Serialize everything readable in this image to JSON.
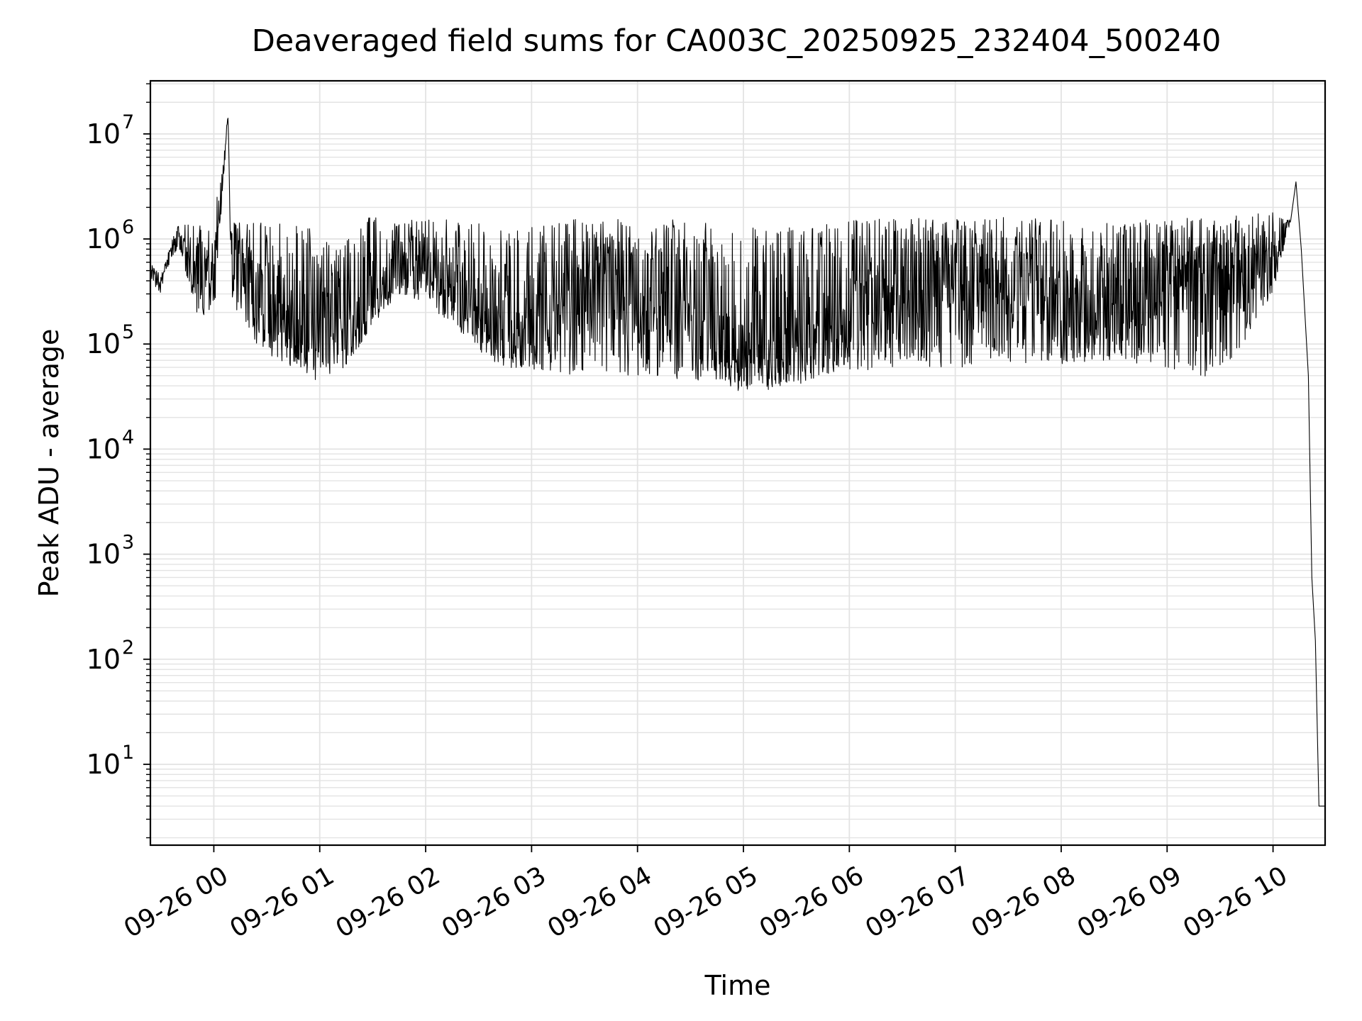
{
  "chart_data": {
    "type": "line",
    "title": "Deaveraged field sums for CA003C_20250925_232404_500240",
    "xlabel": "Time",
    "ylabel": "Peak ADU - average",
    "yscale": "log",
    "grid": true,
    "line_color": "#000000",
    "xlim": [
      "2025-09-25T23:24:04",
      "2025-09-26T10:29:30"
    ],
    "ylim": [
      1.7,
      32000000
    ],
    "x_tick_labels": [
      "09-26 00",
      "09-26 01",
      "09-26 02",
      "09-26 03",
      "09-26 04",
      "09-26 05",
      "09-26 06",
      "09-26 07",
      "09-26 08",
      "09-26 09",
      "09-26 10"
    ],
    "x_tick_times": [
      "2025-09-26T00:00:00",
      "2025-09-26T01:00:00",
      "2025-09-26T02:00:00",
      "2025-09-26T03:00:00",
      "2025-09-26T04:00:00",
      "2025-09-26T05:00:00",
      "2025-09-26T06:00:00",
      "2025-09-26T07:00:00",
      "2025-09-26T08:00:00",
      "2025-09-26T09:00:00",
      "2025-09-26T10:00:00"
    ],
    "y_tick_values": [
      10,
      100,
      1000,
      10000,
      100000,
      1000000,
      10000000
    ],
    "y_tick_labels": [
      {
        "base": "10",
        "exp": "1"
      },
      {
        "base": "10",
        "exp": "2"
      },
      {
        "base": "10",
        "exp": "3"
      },
      {
        "base": "10",
        "exp": "4"
      },
      {
        "base": "10",
        "exp": "5"
      },
      {
        "base": "10",
        "exp": "6"
      },
      {
        "base": "10",
        "exp": "7"
      }
    ],
    "series": [
      {
        "x": [
          "2025-09-25T23:24:04",
          "2025-09-25T23:30:00",
          "2025-09-25T23:40:00",
          "2025-09-25T23:45:00",
          "2025-09-25T23:50:00",
          "2025-09-26T00:00:00",
          "2025-09-26T00:08:00",
          "2025-09-26T00:10:00",
          "2025-09-26T00:20:00",
          "2025-09-26T00:30:00",
          "2025-09-26T00:45:00",
          "2025-09-26T01:00:00",
          "2025-09-26T01:15:00",
          "2025-09-26T01:30:00",
          "2025-09-26T01:45:00",
          "2025-09-26T02:00:00",
          "2025-09-26T02:15:00",
          "2025-09-26T02:30:00",
          "2025-09-26T02:45:00",
          "2025-09-26T03:00:00",
          "2025-09-26T03:30:00",
          "2025-09-26T04:00:00",
          "2025-09-26T04:30:00",
          "2025-09-26T05:00:00",
          "2025-09-26T05:30:00",
          "2025-09-26T06:00:00",
          "2025-09-26T06:30:00",
          "2025-09-26T07:00:00",
          "2025-09-26T07:30:00",
          "2025-09-26T08:00:00",
          "2025-09-26T08:30:00",
          "2025-09-26T09:00:00",
          "2025-09-26T09:30:00",
          "2025-09-26T10:00:00",
          "2025-09-26T10:10:00",
          "2025-09-26T10:13:00",
          "2025-09-26T10:16:00",
          "2025-09-26T10:20:00",
          "2025-09-26T10:22:00",
          "2025-09-26T10:24:00",
          "2025-09-26T10:26:00",
          "2025-09-26T10:29:30"
        ],
        "y": [
          500000,
          380000,
          1200000,
          600000,
          400000,
          500000,
          15000000,
          700000,
          400000,
          250000,
          120000,
          90000,
          110000,
          300000,
          500000,
          600000,
          400000,
          200000,
          150000,
          120000,
          350000,
          400000,
          150000,
          80000,
          90000,
          150000,
          400000,
          500000,
          400000,
          250000,
          200000,
          400000,
          350000,
          500000,
          1500000,
          3500000,
          800000,
          50000,
          600,
          150,
          4,
          4
        ],
        "upper": [
          600000,
          450000,
          1500000,
          1800000,
          1400000,
          1500000,
          15000000,
          1600000,
          1500000,
          1400000,
          1400000,
          1200000,
          1000000,
          1800000,
          1500000,
          1700000,
          1500000,
          1400000,
          1200000,
          1300000,
          1600000,
          1600000,
          1500000,
          1300000,
          1300000,
          1500000,
          1600000,
          1600000,
          1700000,
          1500000,
          1400000,
          1600000,
          1600000,
          1800000,
          1500000,
          3500000,
          800000,
          50000,
          600,
          150,
          4,
          4
        ],
        "lower": [
          400000,
          300000,
          900000,
          400000,
          200000,
          150000,
          15000000,
          200000,
          120000,
          80000,
          60000,
          55000,
          60000,
          150000,
          300000,
          250000,
          150000,
          80000,
          60000,
          55000,
          50000,
          50000,
          45000,
          38000,
          40000,
          55000,
          60000,
          60000,
          60000,
          65000,
          70000,
          60000,
          45000,
          300000,
          1500000,
          3500000,
          800000,
          50000,
          600,
          150,
          4,
          4
        ]
      }
    ]
  }
}
